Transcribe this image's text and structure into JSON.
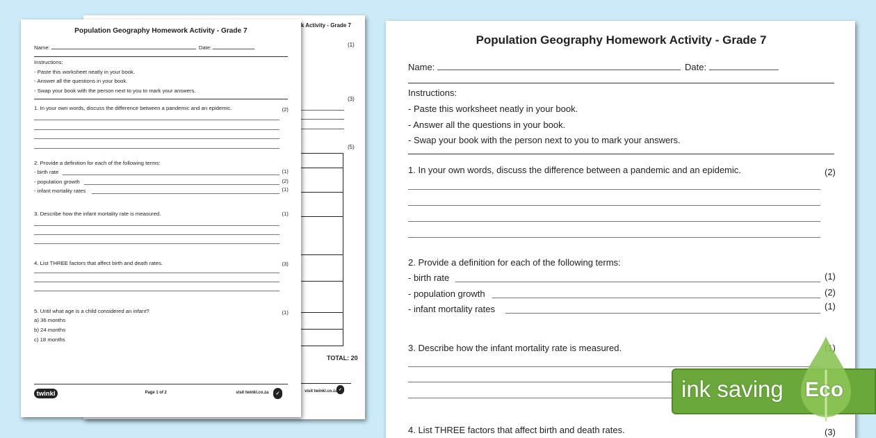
{
  "worksheet": {
    "title": "Population Geography Homework Activity - Grade 7",
    "name_label": "Name:",
    "date_label": "Date:",
    "instructions_heading": "Instructions:",
    "instructions": [
      "- Paste this worksheet neatly in your book.",
      "- Answer all the questions in your book.",
      "- Swap your book with the person next to you to mark your answers."
    ],
    "q1": {
      "text": "1. In your own words, discuss the difference between a pandemic and an epidemic.",
      "marks": "(2)"
    },
    "q2": {
      "text": "2. Provide a definition for each of the following terms:",
      "terms": [
        {
          "label": "- birth rate",
          "marks": "(1)"
        },
        {
          "label": "- population growth",
          "marks": "(2)"
        },
        {
          "label": "- infant mortality rates",
          "marks": "(1)"
        }
      ]
    },
    "q3": {
      "text": "3. Describe how the infant mortality rate is measured.",
      "marks": "(1)"
    },
    "q4": {
      "text": "4. List THREE factors that affect birth and death rates.",
      "marks": "(3)"
    },
    "q5": {
      "text": "5. Until what age is a child considered an infant?",
      "marks": "(1)",
      "options": [
        "a) 36 months",
        "b) 24 months",
        "c) 18 months"
      ]
    },
    "footer": {
      "logo": "twinkl",
      "page": "Page 1 of 2",
      "visit": "visit twinkl.co.za"
    }
  },
  "back_page": {
    "title": "Population Geography Homework Activity - Grade 7",
    "marks": [
      "(1)",
      "(3)",
      "(5)"
    ],
    "total": "TOTAL: 20",
    "visit": "visit twinkl.co.za"
  },
  "badge": {
    "label": "ink saving",
    "eco": "Eco",
    "color": "#6aa83b"
  }
}
